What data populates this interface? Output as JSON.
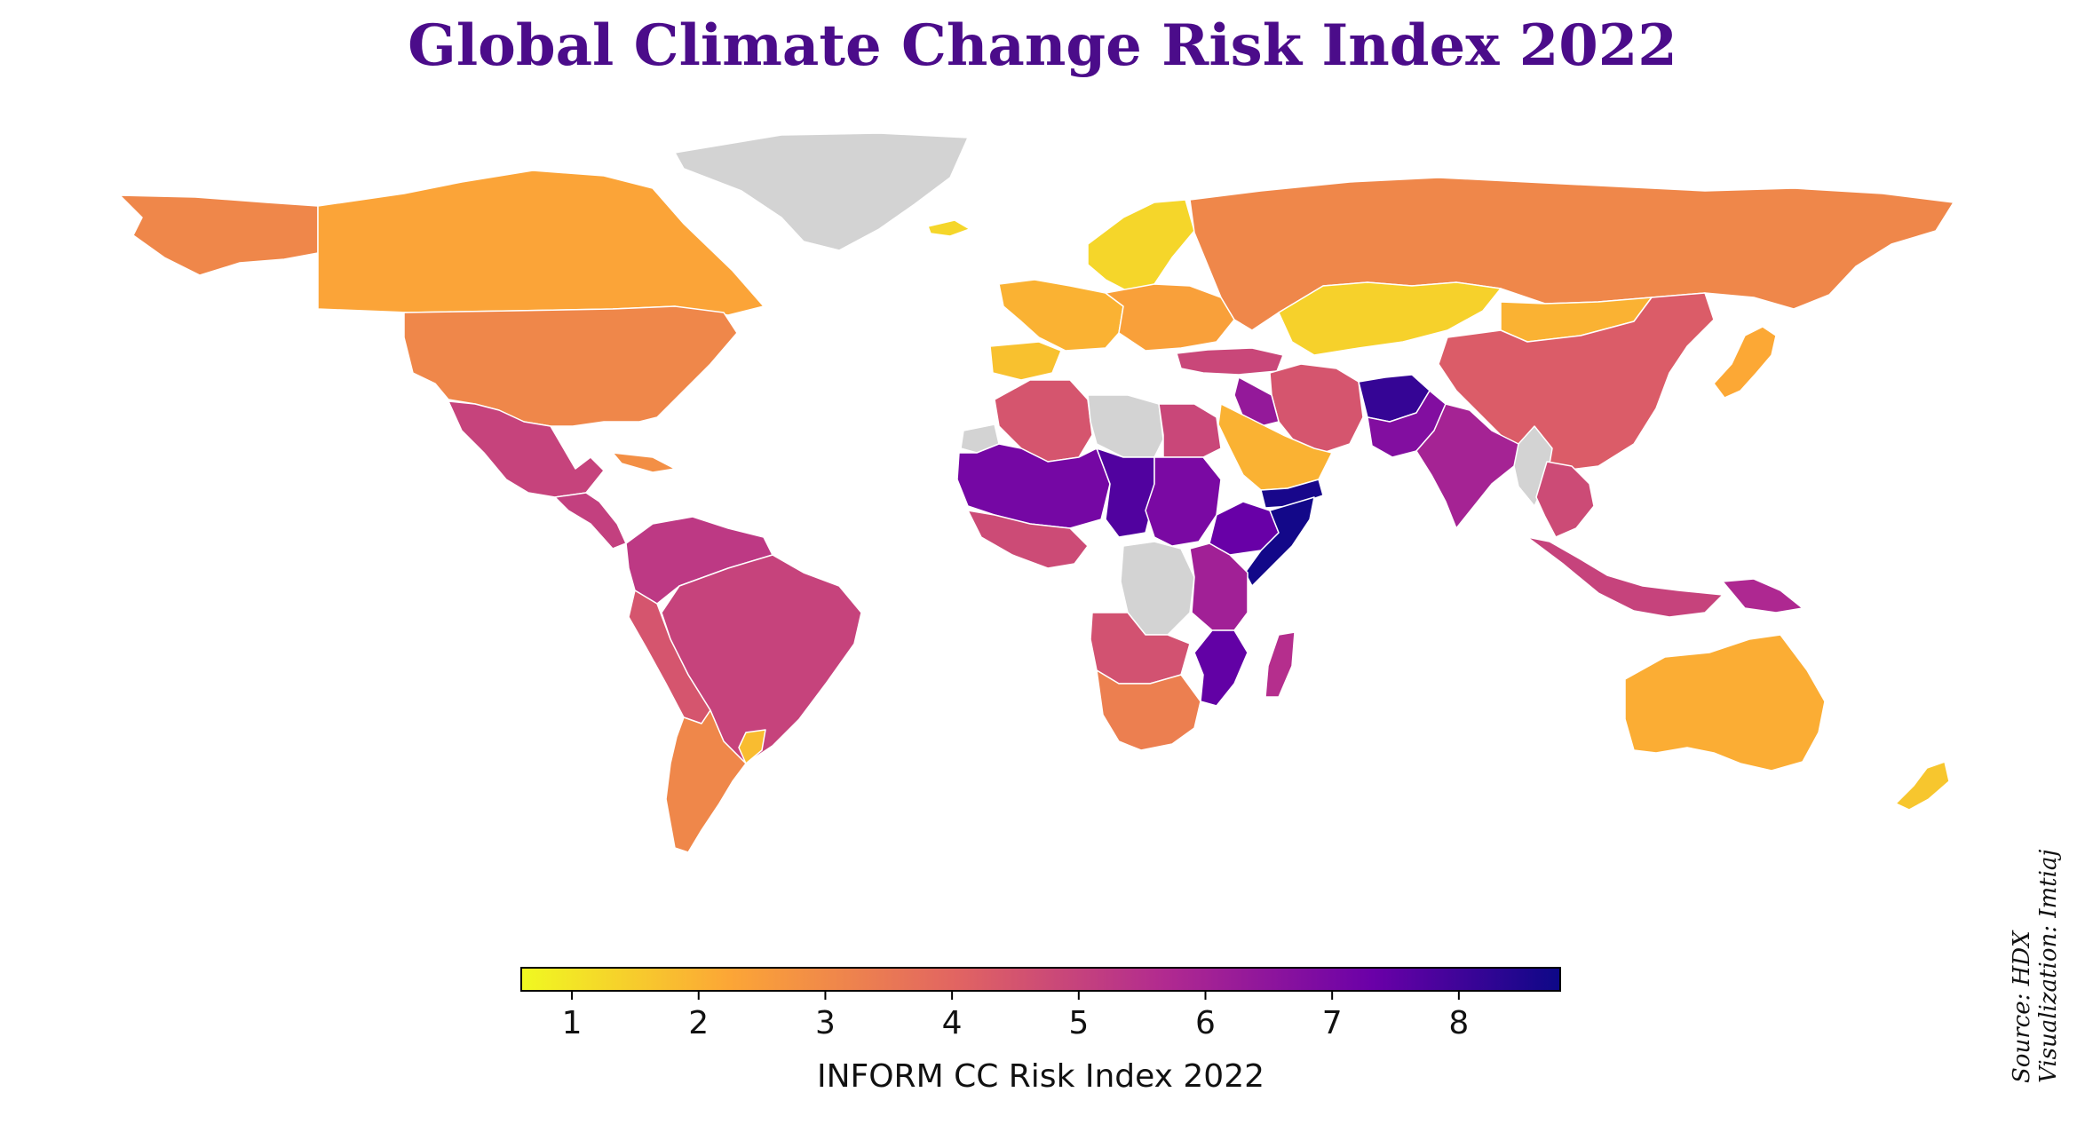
{
  "title": "Global Climate Change Risk Index 2022",
  "colorbar": {
    "label": "INFORM CC Risk Index 2022",
    "range": [
      0.6,
      8.8
    ],
    "ticks": [
      1,
      2,
      3,
      4,
      5,
      6,
      7,
      8
    ],
    "colormap": "plasma (reversed)",
    "stops": [
      "#f0f921",
      "#fca636",
      "#e16462",
      "#b12a90",
      "#6a00a8",
      "#0d0887"
    ]
  },
  "no_data_color": "#d3d3d3",
  "credits": {
    "source": "Source: HDX",
    "visualization": "Visualization: Imtiaj"
  },
  "regions": [
    {
      "name": "Alaska",
      "value": 3.0
    },
    {
      "name": "Canada",
      "value": 2.3
    },
    {
      "name": "Greenland",
      "value": null
    },
    {
      "name": "Iceland",
      "value": 1.3
    },
    {
      "name": "United States",
      "value": 3.0
    },
    {
      "name": "Mexico",
      "value": 4.8
    },
    {
      "name": "Central America",
      "value": 4.9
    },
    {
      "name": "Caribbean",
      "value": 2.8
    },
    {
      "name": "Colombia / Venezuela",
      "value": 5.1
    },
    {
      "name": "Brazil",
      "value": 4.8
    },
    {
      "name": "Andes",
      "value": 4.3
    },
    {
      "name": "Argentina / Chile",
      "value": 3.0
    },
    {
      "name": "Uruguay",
      "value": 1.8
    },
    {
      "name": "Scandinavia",
      "value": 1.3
    },
    {
      "name": "Western Europe",
      "value": 2.0
    },
    {
      "name": "Iberia",
      "value": 1.7
    },
    {
      "name": "Eastern Europe",
      "value": 2.4
    },
    {
      "name": "Turkey",
      "value": 4.7
    },
    {
      "name": "Russia",
      "value": 3.0
    },
    {
      "name": "Kazakhstan",
      "value": 1.4
    },
    {
      "name": "Mongolia",
      "value": 2.0
    },
    {
      "name": "China",
      "value": 4.1
    },
    {
      "name": "Korea / Japan",
      "value": 2.2
    },
    {
      "name": "Iran",
      "value": 4.3
    },
    {
      "name": "Iraq",
      "value": 6.2
    },
    {
      "name": "Saudi Arabia",
      "value": 2.0
    },
    {
      "name": "Yemen",
      "value": 8.6
    },
    {
      "name": "Afghanistan",
      "value": 8.1
    },
    {
      "name": "Pakistan",
      "value": 6.6
    },
    {
      "name": "India",
      "value": 5.8
    },
    {
      "name": "Myanmar",
      "value": null
    },
    {
      "name": "Southeast Asia",
      "value": 4.6
    },
    {
      "name": "Indonesia",
      "value": 4.8
    },
    {
      "name": "Papua New Guinea",
      "value": 5.6
    },
    {
      "name": "Australia",
      "value": 2.1
    },
    {
      "name": "New Zealand",
      "value": 1.6
    },
    {
      "name": "Morocco / Algeria",
      "value": 4.3
    },
    {
      "name": "Western Sahara",
      "value": null
    },
    {
      "name": "Libya",
      "value": null
    },
    {
      "name": "Egypt",
      "value": 4.7
    },
    {
      "name": "Sahel West",
      "value": 6.9
    },
    {
      "name": "Chad",
      "value": 7.6
    },
    {
      "name": "Sudan",
      "value": 6.8
    },
    {
      "name": "Ethiopia",
      "value": 7.2
    },
    {
      "name": "Somalia",
      "value": 8.7
    },
    {
      "name": "Gulf of Guinea",
      "value": 4.6
    },
    {
      "name": "DR Congo",
      "value": null
    },
    {
      "name": "East Africa",
      "value": 5.9
    },
    {
      "name": "Angola / Zambia",
      "value": 4.4
    },
    {
      "name": "Mozambique",
      "value": 7.3
    },
    {
      "name": "Southern Africa",
      "value": 3.2
    },
    {
      "name": "Madagascar",
      "value": 5.4
    }
  ]
}
